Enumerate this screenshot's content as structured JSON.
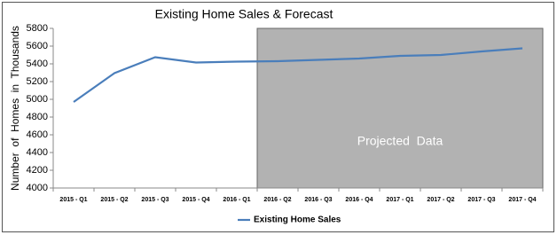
{
  "chart_data": {
    "type": "line",
    "title": "Existing Home Sales & Forecast",
    "y_label": "Number  of  Homes  in  Thousands",
    "categories": [
      "2015 - Q1",
      "2015 - Q2",
      "2015 - Q3",
      "2015 - Q4",
      "2016 - Q1",
      "2016 - Q2",
      "2016 - Q3",
      "2016 - Q4",
      "2017 - Q1",
      "2017 - Q2",
      "2017 - Q3",
      "2017 - Q4"
    ],
    "series": [
      {
        "name": "Existing Home Sales",
        "color": "#4a7ebb",
        "values": [
          4970,
          5295,
          5475,
          5415,
          5425,
          5430,
          5445,
          5460,
          5490,
          5500,
          5540,
          5575
        ]
      }
    ],
    "ylim": [
      4000,
      5800
    ],
    "yticks": [
      4000,
      4200,
      4400,
      4600,
      4800,
      5000,
      5200,
      5400,
      5600,
      5800
    ],
    "grid": false,
    "projected_from": "2016 - Q2",
    "projected_label": "Projected  Data",
    "projected_color": "#b2b2b2",
    "legend": "bottom"
  }
}
